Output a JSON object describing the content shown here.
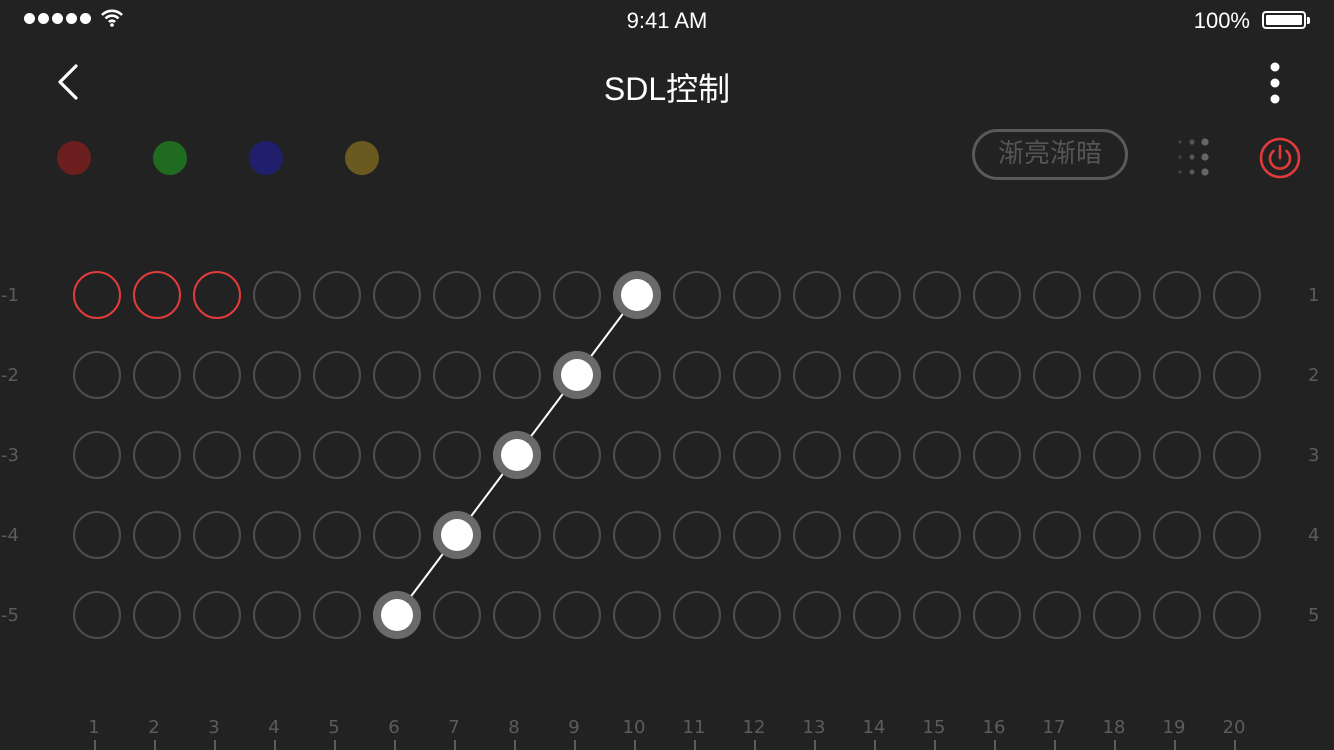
{
  "status_bar": {
    "time": "9:41 AM",
    "battery": "100%"
  },
  "header": {
    "title": "SDL控制",
    "back_icon": "chevron-left-icon",
    "more_icon": "more-vertical-icon"
  },
  "toolbar": {
    "colors": [
      {
        "name": "red",
        "color": "#6b1f1f"
      },
      {
        "name": "green",
        "color": "#1f6b1f"
      },
      {
        "name": "blue",
        "color": "#1f1f6b"
      },
      {
        "name": "yellow",
        "color": "#6b5a1f"
      }
    ],
    "fade_label": "渐亮渐暗",
    "grid_icon": "grid-dots-icon",
    "power_icon": "power-icon",
    "power_color": "#e23b3b"
  },
  "matrix": {
    "rows": 5,
    "cols": 20,
    "row_labels_left": [
      "-1",
      "-2",
      "-3",
      "-4",
      "-5"
    ],
    "row_labels_right": [
      "1",
      "2",
      "3",
      "4",
      "5"
    ],
    "col_labels": [
      "1",
      "2",
      "3",
      "4",
      "5",
      "6",
      "7",
      "8",
      "9",
      "10",
      "11",
      "12",
      "13",
      "14",
      "15",
      "16",
      "17",
      "18",
      "19",
      "20"
    ],
    "highlighted": [
      [
        1,
        1
      ],
      [
        1,
        2
      ],
      [
        1,
        3
      ]
    ],
    "highlight_color": "#e23b3b",
    "path": [
      [
        5,
        6
      ],
      [
        4,
        7
      ],
      [
        3,
        8
      ],
      [
        2,
        9
      ],
      [
        1,
        10
      ]
    ]
  }
}
